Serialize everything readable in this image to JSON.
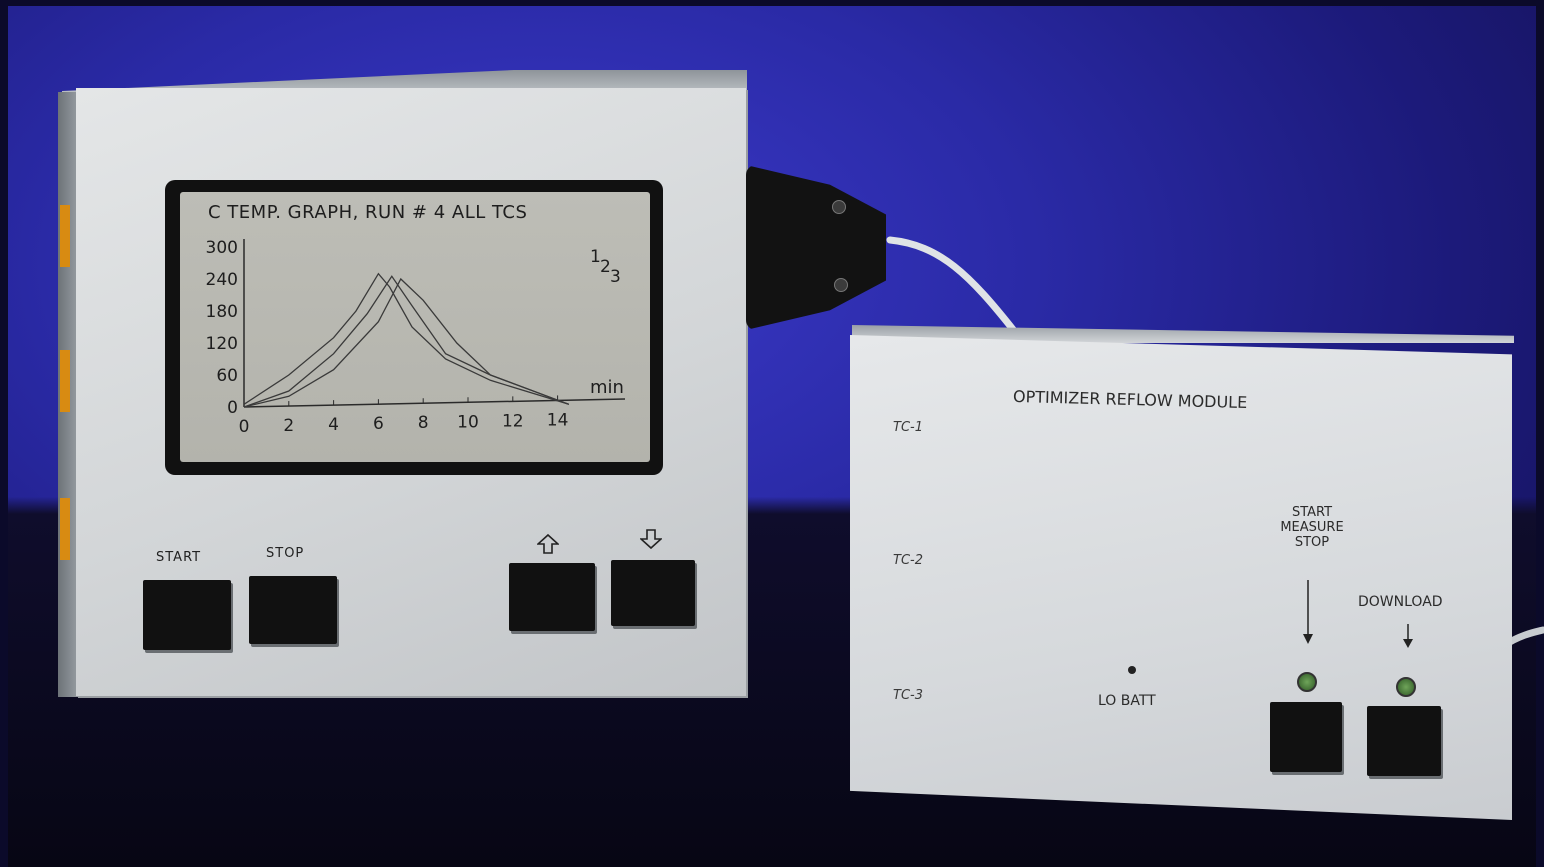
{
  "scene": {
    "backdrop_colors": {
      "blue": "#2a2aa6",
      "table": "#0b0a2a"
    }
  },
  "data_logger": {
    "screen": {
      "header": "C TEMP. GRAPH,  RUN  # 4  ALL TCS",
      "y_ticks": [
        "300",
        "240",
        "180",
        "120",
        "60",
        "0"
      ],
      "x_ticks": [
        "0",
        "2",
        "4",
        "6",
        "8",
        "10",
        "12",
        "14"
      ],
      "x_unit": "min",
      "curve_ids": [
        "1",
        "2",
        "3"
      ]
    },
    "buttons": {
      "start_label": "START",
      "stop_label": "STOP",
      "up_icon": "up-arrow-icon",
      "down_icon": "down-arrow-icon"
    },
    "accent_color": "#d88b12"
  },
  "chart_data": {
    "type": "line",
    "title": "C TEMP. GRAPH,  RUN  # 4  ALL TCS",
    "xlabel": "min",
    "ylabel": "",
    "xlim": [
      0,
      15
    ],
    "ylim": [
      0,
      300
    ],
    "x_ticks": [
      0,
      2,
      4,
      6,
      8,
      10,
      12,
      14
    ],
    "y_ticks": [
      0,
      60,
      120,
      180,
      240,
      300
    ],
    "series": [
      {
        "name": "1",
        "x": [
          0,
          2,
          4,
          5,
          6,
          6.5,
          7.5,
          9,
          11,
          14.5
        ],
        "y": [
          5,
          60,
          130,
          180,
          250,
          225,
          150,
          90,
          50,
          5
        ]
      },
      {
        "name": "2",
        "x": [
          0,
          2,
          4,
          5.5,
          6.6,
          7.5,
          9,
          11,
          14.5
        ],
        "y": [
          0,
          30,
          100,
          175,
          245,
          190,
          100,
          60,
          5
        ]
      },
      {
        "name": "3",
        "x": [
          0,
          2,
          4,
          6,
          7,
          8,
          9.5,
          11,
          14.5
        ],
        "y": [
          0,
          20,
          70,
          160,
          240,
          200,
          120,
          60,
          5
        ]
      }
    ],
    "grid": false,
    "legend": "top-right"
  },
  "reflow_module": {
    "title": "OPTIMIZER   REFLOW   MODULE",
    "tc_labels": [
      "TC-1",
      "TC-2",
      "TC-3"
    ],
    "lo_batt_label": "LO BATT",
    "start_label_lines": [
      "START",
      "MEASURE",
      "STOP"
    ],
    "download_label": "DOWNLOAD",
    "led_color": "#4a7d3a"
  }
}
